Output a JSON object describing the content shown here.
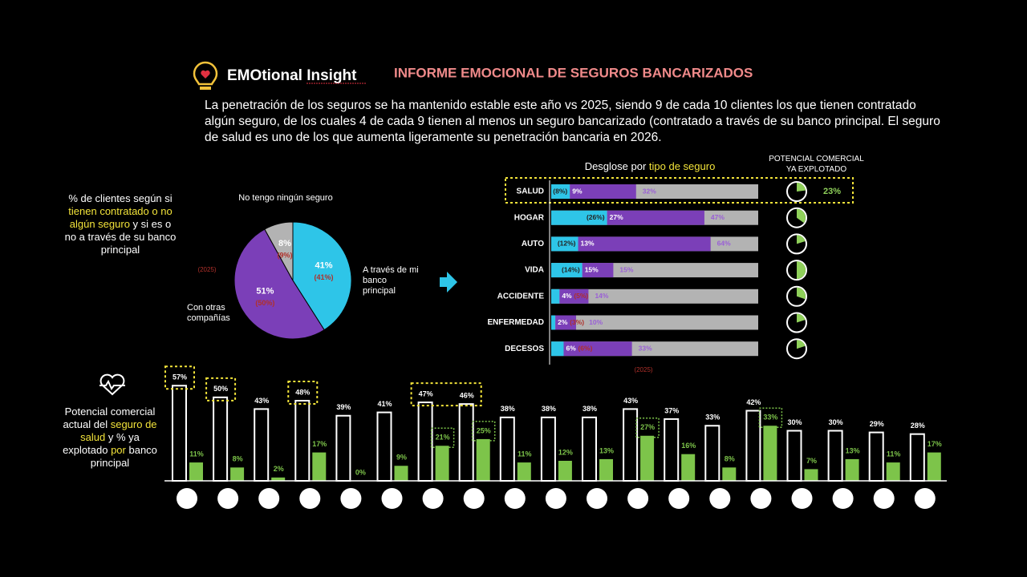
{
  "header": {
    "brand": "EMOtional Insight",
    "title": "INFORME EMOCIONAL DE SEGUROS BANCARIZADOS",
    "intro": "La penetración de los seguros se ha mantenido estable este año vs 2025, siendo 9 de cada 10 clientes los que tienen contratado algún seguro, de los cuales 4 de cada 9 tienen al menos un seguro bancarizado (contratado a través de su banco principal. El seguro de salud es uno de los que aumenta ligeramente su penetración bancaria en 2026."
  },
  "chart_data": [
    {
      "type": "pie",
      "title_parts": [
        "% de clientes según si ",
        "tienen contratado o no algún seguro",
        " y si es o no a través de su banco principal"
      ],
      "categories": [
        "A través de mi banco principal",
        "Con otras compañías",
        "No tengo ningún seguro"
      ],
      "values": [
        41,
        51,
        8
      ],
      "value_labels": [
        "41%",
        "51%",
        "8%"
      ],
      "previous_values": [
        41,
        50,
        9
      ],
      "previous_labels": [
        "(41%)",
        "(50%)",
        "(9%)"
      ],
      "previous_note": "(2025)",
      "colors": [
        "#2ec5e8",
        "#7b3fb8",
        "#b3b3b3"
      ]
    },
    {
      "type": "stacked-barh",
      "title_parts": [
        "Desglose por ",
        "tipo de seguro"
      ],
      "categories": [
        "SALUD",
        "HOGAR",
        "AUTO",
        "VIDA",
        "ACCIDENTE",
        "ENFERMEDAD",
        "DECESOS"
      ],
      "xlim": [
        0,
        100
      ],
      "series": [
        {
          "color": "#2ec5e8",
          "values": [
            9,
            27,
            13,
            15,
            4,
            2,
            6
          ],
          "value_labels": [
            "9%",
            "27%",
            "13%",
            "15%",
            "4%",
            "2%",
            "6%"
          ],
          "previous_values": [
            8,
            26,
            12,
            14,
            5,
            3,
            6
          ],
          "previous_labels": [
            "(8%)",
            "(26%)",
            "(12%)",
            "(14%)",
            "(5%)",
            "(3%)",
            "(6%)"
          ]
        },
        {
          "color": "#7b3fb8",
          "values": [
            32,
            47,
            64,
            15,
            14,
            10,
            33
          ],
          "value_labels": [
            "32%",
            "47%",
            "64%",
            "15%",
            "14%",
            "10%",
            "33%"
          ]
        }
      ],
      "previous_note": "(2025)",
      "exploited": {
        "title": "POTENCIAL COMERCIAL YA EXPLOTADO",
        "color": "#8fd05a",
        "values": [
          23,
          35,
          20,
          50,
          30,
          20,
          20
        ],
        "value_labels": [
          "23%",
          null,
          null,
          null,
          null,
          null,
          null
        ]
      }
    },
    {
      "type": "bar",
      "title_parts": [
        "Potencial comercial actual del ",
        "seguro de salud",
        " y % ya explotado ",
        "por",
        " banco principal"
      ],
      "categories": [
        null,
        null,
        null,
        null,
        null,
        null,
        null,
        null,
        null,
        null,
        null,
        null,
        null,
        null,
        null,
        null,
        null,
        null,
        null
      ],
      "ylim": [
        0,
        60
      ],
      "series": [
        {
          "color": "#ffffff",
          "values": [
            57,
            50,
            43,
            48,
            39,
            41,
            47,
            46,
            38,
            38,
            38,
            43,
            37,
            33,
            42,
            30,
            30,
            29,
            28
          ],
          "value_labels": [
            "57%",
            "50%",
            "43%",
            "48%",
            "39%",
            "41%",
            "47%",
            "46%",
            "38%",
            "38%",
            "38%",
            "43%",
            "37%",
            "33%",
            "42%",
            "30%",
            "30%",
            "29%",
            "28%"
          ]
        },
        {
          "color": "#7dc44a",
          "values": [
            11,
            8,
            2,
            17,
            0,
            9,
            21,
            25,
            11,
            12,
            13,
            27,
            16,
            8,
            33,
            7,
            13,
            11,
            17
          ],
          "value_labels": [
            "11%",
            "8%",
            "2%",
            "17%",
            "0%",
            "9%",
            "21%",
            "25%",
            "11%",
            "12%",
            "13%",
            "27%",
            "16%",
            "8%",
            "33%",
            "7%",
            "13%",
            "11%",
            "17%"
          ]
        }
      ]
    }
  ]
}
